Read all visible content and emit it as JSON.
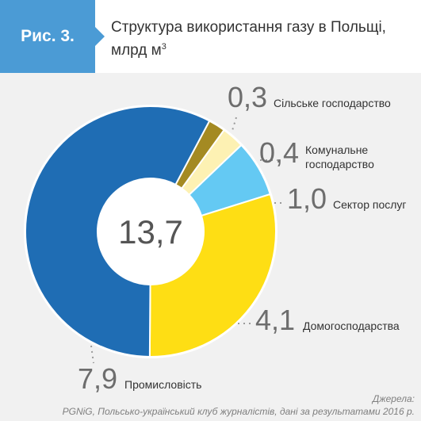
{
  "figure": {
    "label": "Рис. 3.",
    "title": "Структура використання газу в Польщі, млрд м",
    "title_sup": "3"
  },
  "chart_data": {
    "type": "pie",
    "donut": true,
    "title": "Структура використання газу в Польщі, млрд м³",
    "center_label": "13,7",
    "units": "млрд м³",
    "slices": [
      {
        "label": "Сільське господарство",
        "value": 0.3,
        "value_text": "0,3",
        "color": "#a48a22"
      },
      {
        "label": "Комунальне господарство",
        "value": 0.4,
        "value_text": "0,4",
        "color": "#fdf1b3"
      },
      {
        "label": "Сектор послуг",
        "value": 1.0,
        "value_text": "1,0",
        "color": "#64c9f3"
      },
      {
        "label": "Домогосподарства",
        "value": 4.1,
        "value_text": "4,1",
        "color": "#fede14"
      },
      {
        "label": "Промисловість",
        "value": 7.9,
        "value_text": "7,9",
        "color": "#1f6db4"
      }
    ]
  },
  "source": {
    "line1": "Джерела:",
    "line2": "PGNiG, Польсько-український клуб журналістів, дані за результатами 2016 р."
  }
}
